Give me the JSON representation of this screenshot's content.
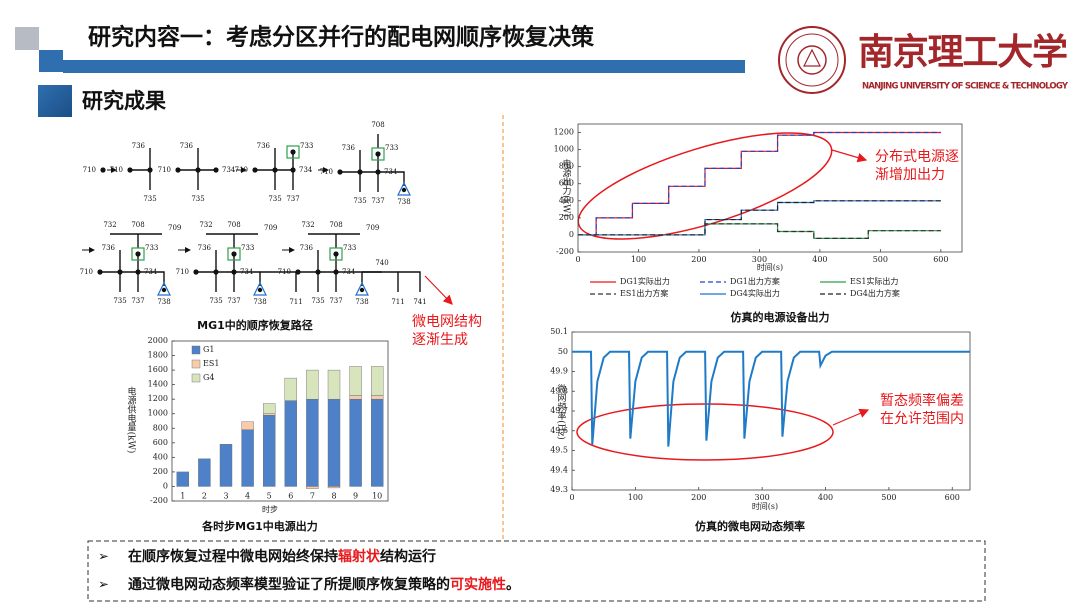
{
  "header": {
    "title": "研究内容一：考虑分区并行的配电网顺序恢复决策",
    "logo_name": "南京理工大学",
    "logo_subtitle": "NANJING UNIVERSITY OF SCIENCE & TECHNOLOGY"
  },
  "section_title": "研究成果",
  "diagram": {
    "caption": "MG1中的顺序恢复路径",
    "annotation": [
      "微电网结构",
      "逐渐生成"
    ],
    "panels": [
      {
        "labels": [
          "710"
        ]
      },
      {
        "labels": [
          "736",
          "710",
          "735"
        ]
      },
      {
        "labels": [
          "736",
          "710",
          "734",
          "735"
        ]
      },
      {
        "labels": [
          "736",
          "733",
          "710",
          "734",
          "735",
          "737"
        ]
      },
      {
        "labels": [
          "708",
          "736",
          "733",
          "710",
          "734",
          "735",
          "737",
          "738"
        ]
      },
      {
        "labels": [
          "732",
          "708",
          "709",
          "736",
          "733",
          "710",
          "734",
          "735",
          "737",
          "738"
        ]
      },
      {
        "labels": [
          "732",
          "708",
          "709",
          "736",
          "733",
          "710",
          "734",
          "735",
          "737",
          "738",
          "711"
        ]
      },
      {
        "labels": [
          "732",
          "708",
          "709",
          "736",
          "733",
          "710",
          "734",
          "740",
          "735",
          "737",
          "738",
          "711",
          "741"
        ]
      }
    ]
  },
  "chart_data": [
    {
      "type": "bar",
      "stacked": true,
      "title": "各时步MG1中电源出力",
      "x_label": "时步",
      "y_label": "电源供电量(kW)",
      "categories": [
        "1",
        "2",
        "3",
        "4",
        "5",
        "6",
        "7",
        "8",
        "9",
        "10"
      ],
      "series": [
        {
          "name": "G1",
          "color": "#4f81c9",
          "values": [
            200,
            380,
            580,
            780,
            980,
            1180,
            1200,
            1200,
            1200,
            1200
          ]
        },
        {
          "name": "ES1",
          "color": "#f8cbad",
          "values": [
            0,
            0,
            0,
            110,
            20,
            0,
            -30,
            -20,
            50,
            50
          ]
        },
        {
          "name": "G4",
          "color": "#d8e4bc",
          "values": [
            0,
            0,
            0,
            0,
            140,
            310,
            400,
            400,
            400,
            400
          ]
        }
      ],
      "ylim": [
        -200,
        2000
      ],
      "yticks": [
        -200,
        0,
        200,
        400,
        600,
        800,
        1000,
        1200,
        1400,
        1600,
        1800,
        2000
      ]
    },
    {
      "type": "line",
      "title": "仿真的电源设备出力",
      "x_label": "时间(s)",
      "y_label": "电源出力(kW)",
      "annotation": [
        "分布式电源逐",
        "渐增加出力"
      ],
      "xlim": [
        0,
        635
      ],
      "xticks": [
        0,
        100,
        200,
        300,
        400,
        500,
        600
      ],
      "ylim": [
        -200,
        1300
      ],
      "yticks": [
        -200,
        0,
        200,
        400,
        600,
        800,
        1000,
        1200
      ],
      "series": [
        {
          "name": "DG1实际出力",
          "color": "#e8191c",
          "dashed": false,
          "x": [
            0,
            30,
            30,
            90,
            90,
            150,
            150,
            210,
            210,
            270,
            270,
            330,
            330,
            390,
            390,
            600
          ],
          "values": [
            0,
            0,
            200,
            200,
            370,
            370,
            570,
            570,
            780,
            780,
            980,
            980,
            1170,
            1170,
            1200,
            1200
          ]
        },
        {
          "name": "DG1出力方案",
          "color": "#2840c8",
          "dashed": true,
          "x": [
            0,
            30,
            30,
            90,
            90,
            150,
            150,
            210,
            210,
            270,
            270,
            330,
            330,
            390,
            390,
            600
          ],
          "values": [
            0,
            0,
            200,
            200,
            370,
            370,
            570,
            570,
            780,
            780,
            980,
            980,
            1170,
            1170,
            1200,
            1200
          ]
        },
        {
          "name": "ES1实际出力",
          "color": "#2ea04a",
          "dashed": false,
          "x": [
            0,
            210,
            210,
            330,
            330,
            390,
            390,
            480,
            480,
            600
          ],
          "values": [
            0,
            0,
            130,
            130,
            40,
            40,
            -40,
            -40,
            50,
            50
          ]
        },
        {
          "name": "ES1出力方案",
          "color": "#333333",
          "dashed": true,
          "x": [
            0,
            210,
            210,
            330,
            330,
            390,
            390,
            480,
            480,
            600
          ],
          "values": [
            0,
            0,
            130,
            130,
            40,
            40,
            -40,
            -40,
            50,
            50
          ]
        },
        {
          "name": "DG4实际出力",
          "color": "#1f6fd0",
          "dashed": false,
          "x": [
            0,
            210,
            210,
            270,
            270,
            330,
            330,
            390,
            390,
            600
          ],
          "values": [
            0,
            0,
            180,
            180,
            290,
            290,
            380,
            380,
            400,
            400
          ]
        },
        {
          "name": "DG4出力方案",
          "color": "#222222",
          "dashed": true,
          "x": [
            0,
            210,
            210,
            270,
            270,
            330,
            330,
            390,
            390,
            600
          ],
          "values": [
            0,
            0,
            180,
            180,
            290,
            290,
            380,
            380,
            400,
            400
          ]
        }
      ]
    },
    {
      "type": "line",
      "title": "仿真的微电网动态频率",
      "x_label": "时间(s)",
      "y_label": "微网频率(Hz)",
      "annotation": [
        "暂态频率偏差",
        "在允许范围内"
      ],
      "xlim": [
        0,
        628
      ],
      "xticks": [
        0,
        100,
        200,
        300,
        400,
        500,
        600
      ],
      "ylim": [
        49.3,
        50.1
      ],
      "yticks": [
        49.3,
        49.4,
        49.5,
        49.6,
        49.7,
        49.8,
        49.9,
        50,
        50.1
      ],
      "color": "#1f7bc8",
      "x": [
        0,
        30,
        32,
        40,
        50,
        60,
        90,
        92,
        100,
        110,
        120,
        150,
        152,
        160,
        170,
        180,
        210,
        212,
        220,
        230,
        240,
        270,
        272,
        280,
        290,
        300,
        330,
        332,
        340,
        350,
        360,
        390,
        392,
        400,
        410,
        628
      ],
      "values": [
        50,
        50,
        49.53,
        49.85,
        49.97,
        50,
        50,
        49.56,
        49.85,
        49.97,
        50,
        50,
        49.52,
        49.85,
        49.97,
        50,
        50,
        49.55,
        49.85,
        49.97,
        50,
        50,
        49.56,
        49.85,
        49.97,
        50,
        50,
        49.57,
        49.85,
        49.97,
        50,
        50,
        49.93,
        49.98,
        50,
        50
      ]
    }
  ],
  "conclusions": [
    {
      "bullet": "➢",
      "segments": [
        {
          "text": "在顺序恢复过程中微电网始终保持",
          "highlight": false
        },
        {
          "text": "辐射状",
          "highlight": true
        },
        {
          "text": "结构运行",
          "highlight": false
        }
      ]
    },
    {
      "bullet": "➢",
      "segments": [
        {
          "text": "通过微电网动态频率模型验证了所提顺序恢复策略的",
          "highlight": false
        },
        {
          "text": "可实施性",
          "highlight": true
        },
        {
          "text": "。",
          "highlight": false
        }
      ]
    }
  ]
}
